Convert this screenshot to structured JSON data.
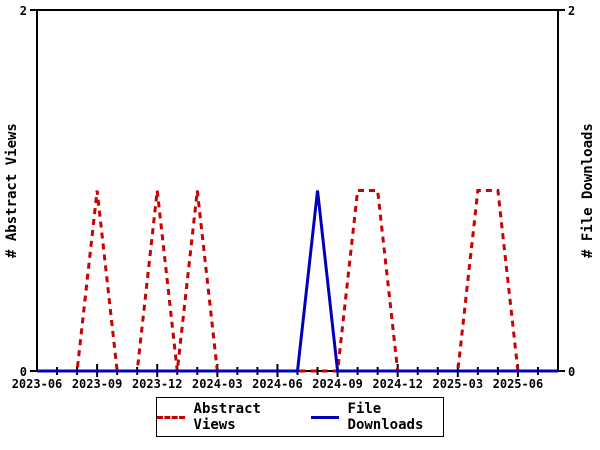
{
  "figure": {
    "background": "#ffffff",
    "axis_color": "#000000"
  },
  "axes": {
    "left_title": "# Abstract Views",
    "right_title": "# File Downloads"
  },
  "legend": {
    "items": [
      {
        "label": "Abstract Views",
        "color": "#cc0000",
        "line_style": "dashed"
      },
      {
        "label": "File Downloads",
        "color": "#0000bb",
        "line_style": "solid"
      }
    ]
  },
  "chart_data": {
    "type": "line",
    "title": "",
    "x": [
      "2023-06",
      "2023-07",
      "2023-08",
      "2023-09",
      "2023-10",
      "2023-11",
      "2023-12",
      "2024-01",
      "2024-02",
      "2024-03",
      "2024-04",
      "2024-05",
      "2024-06",
      "2024-07",
      "2024-08",
      "2024-09",
      "2024-10",
      "2024-11",
      "2024-12",
      "2025-01",
      "2025-02",
      "2025-03",
      "2025-04",
      "2025-05",
      "2025-06",
      "2025-07",
      "2025-08"
    ],
    "x_tick_labels": [
      "2023-06",
      "2023-09",
      "2023-12",
      "2024-03",
      "2024-06",
      "2024-09",
      "2024-12",
      "2025-03",
      "2025-06"
    ],
    "series": [
      {
        "name": "Abstract Views",
        "axis": "left",
        "color": "#cc0000",
        "style": "dashed",
        "values": [
          0,
          0,
          0,
          1,
          0,
          0,
          1,
          0,
          1,
          0,
          0,
          0,
          0,
          0,
          0,
          0,
          1,
          1,
          0,
          0,
          0,
          0,
          1,
          1,
          0,
          0,
          0
        ]
      },
      {
        "name": "File Downloads",
        "axis": "right",
        "color": "#0000bb",
        "style": "solid",
        "values": [
          0,
          0,
          0,
          0,
          0,
          0,
          0,
          0,
          0,
          0,
          0,
          0,
          0,
          0,
          1,
          0,
          0,
          0,
          0,
          0,
          0,
          0,
          0,
          0,
          0,
          0,
          0
        ]
      }
    ],
    "ylim": [
      0,
      2
    ],
    "y_ticks": [
      0,
      2
    ],
    "ylabel_left": "# Abstract Views",
    "ylabel_right": "# File Downloads",
    "grid": false,
    "legend_position": "bottom"
  }
}
